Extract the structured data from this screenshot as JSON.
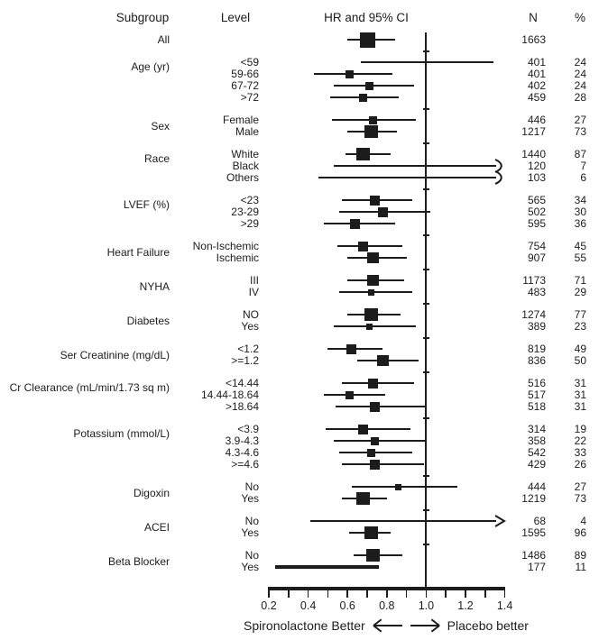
{
  "columns": [
    {
      "label": "Subgroup"
    },
    {
      "label": "Level"
    },
    {
      "label": "HR and 95% CI"
    },
    {
      "label": "N"
    },
    {
      "label": "%"
    }
  ],
  "caption": {
    "left": "Spironolactone Better",
    "right": "Placebo better"
  },
  "colors": {
    "ink": "#1c1c1c",
    "background": "#ffffff"
  },
  "chart_data": {
    "type": "scatter",
    "subtype": "forest-plot",
    "title": "HR and 95% CI",
    "x_axis": {
      "min": 0.2,
      "max": 1.4,
      "minor_step": 0.1,
      "reference_line": 1.0,
      "tick_labels": [
        "0.2",
        "0.4",
        "0.6",
        "0.8",
        "1.0",
        "1.2",
        "1.4"
      ]
    },
    "legend": "marker size proportional to subgroup sample size; arrows indicate CI extends beyond 1.4",
    "groups": [
      {
        "subgroup": "All",
        "levels": [
          {
            "level": "",
            "n": "1663",
            "pct": "",
            "hr": 0.7,
            "lo": 0.6,
            "hi": 0.84,
            "size": "XL"
          }
        ]
      },
      {
        "subgroup": "Age (yr)",
        "levels": [
          {
            "level": "<59",
            "n": "401",
            "pct": "24",
            "hr": null,
            "lo": 0.67,
            "hi": 1.34,
            "size": null
          },
          {
            "level": "59-66",
            "n": "401",
            "pct": "24",
            "hr": 0.61,
            "lo": 0.43,
            "hi": 0.83,
            "size": "S"
          },
          {
            "level": "67-72",
            "n": "402",
            "pct": "24",
            "hr": 0.71,
            "lo": 0.53,
            "hi": 0.94,
            "size": "S"
          },
          {
            "level": ">72",
            "n": "459",
            "pct": "28",
            "hr": 0.68,
            "lo": 0.51,
            "hi": 0.86,
            "size": "S"
          }
        ]
      },
      {
        "subgroup": "Sex",
        "levels": [
          {
            "level": "Female",
            "n": "446",
            "pct": "27",
            "hr": 0.73,
            "lo": 0.52,
            "hi": 0.95,
            "size": "S"
          },
          {
            "level": "Male",
            "n": "1217",
            "pct": "73",
            "hr": 0.72,
            "lo": 0.6,
            "hi": 0.85,
            "size": "L"
          }
        ]
      },
      {
        "subgroup": "Race",
        "levels": [
          {
            "level": "White",
            "n": "1440",
            "pct": "87",
            "hr": 0.68,
            "lo": 0.59,
            "hi": 0.82,
            "size": "L"
          },
          {
            "level": "Black",
            "n": "120",
            "pct": "7",
            "hr": null,
            "lo": 0.53,
            "hi": null,
            "arrow": "curved",
            "size": null
          },
          {
            "level": "Others",
            "n": "103",
            "pct": "6",
            "hr": null,
            "lo": 0.45,
            "hi": null,
            "arrow": "curved",
            "size": null
          }
        ]
      },
      {
        "subgroup": "LVEF (%)",
        "levels": [
          {
            "level": "<23",
            "n": "565",
            "pct": "34",
            "hr": 0.74,
            "lo": 0.57,
            "hi": 0.93,
            "size": "M"
          },
          {
            "level": "23-29",
            "n": "502",
            "pct": "30",
            "hr": 0.78,
            "lo": 0.56,
            "hi": 1.02,
            "size": "M"
          },
          {
            "level": ">29",
            "n": "595",
            "pct": "36",
            "hr": 0.64,
            "lo": 0.48,
            "hi": 0.84,
            "size": "M"
          }
        ]
      },
      {
        "subgroup": "Heart Failure",
        "levels": [
          {
            "level": "Non-Ischemic",
            "n": "754",
            "pct": "45",
            "hr": 0.68,
            "lo": 0.55,
            "hi": 0.88,
            "size": "M"
          },
          {
            "level": "Ischemic",
            "n": "907",
            "pct": "55",
            "hr": 0.73,
            "lo": 0.6,
            "hi": 0.9,
            "size": "ML"
          }
        ]
      },
      {
        "subgroup": "NYHA",
        "levels": [
          {
            "level": "III",
            "n": "1173",
            "pct": "71",
            "hr": 0.73,
            "lo": 0.6,
            "hi": 0.89,
            "size": "ML"
          },
          {
            "level": "IV",
            "n": "483",
            "pct": "29",
            "hr": 0.72,
            "lo": 0.56,
            "hi": 0.93,
            "size": "XS"
          }
        ]
      },
      {
        "subgroup": "Diabetes",
        "levels": [
          {
            "level": "NO",
            "n": "1274",
            "pct": "77",
            "hr": 0.72,
            "lo": 0.6,
            "hi": 0.87,
            "size": "L"
          },
          {
            "level": "Yes",
            "n": "389",
            "pct": "23",
            "hr": 0.71,
            "lo": 0.53,
            "hi": 0.95,
            "size": "XS"
          }
        ]
      },
      {
        "subgroup": "Ser Creatinine (mg/dL)",
        "levels": [
          {
            "level": "<1.2",
            "n": "819",
            "pct": "49",
            "hr": 0.62,
            "lo": 0.5,
            "hi": 0.78,
            "size": "M"
          },
          {
            "level": ">=1.2",
            "n": "836",
            "pct": "50",
            "hr": 0.78,
            "lo": 0.65,
            "hi": 0.96,
            "size": "ML"
          }
        ]
      },
      {
        "subgroup": "Cr Clearance (mL/min/1.73 sq m)",
        "levels": [
          {
            "level": "<14.44",
            "n": "516",
            "pct": "31",
            "hr": 0.73,
            "lo": 0.57,
            "hi": 0.94,
            "size": "M"
          },
          {
            "level": "14.44-18.64",
            "n": "517",
            "pct": "31",
            "hr": 0.61,
            "lo": 0.48,
            "hi": 0.79,
            "size": "S"
          },
          {
            "level": ">18.64",
            "n": "518",
            "pct": "31",
            "hr": 0.74,
            "lo": 0.54,
            "hi": 1.0,
            "size": "M"
          }
        ]
      },
      {
        "subgroup": "Potassium (mmol/L)",
        "levels": [
          {
            "level": "<3.9",
            "n": "314",
            "pct": "19",
            "hr": 0.68,
            "lo": 0.49,
            "hi": 0.92,
            "size": "M"
          },
          {
            "level": "3.9-4.3",
            "n": "358",
            "pct": "22",
            "hr": 0.74,
            "lo": 0.53,
            "hi": 1.0,
            "size": "S"
          },
          {
            "level": "4.3-4.6",
            "n": "542",
            "pct": "33",
            "hr": 0.72,
            "lo": 0.56,
            "hi": 0.93,
            "size": "S"
          },
          {
            "level": ">=4.6",
            "n": "429",
            "pct": "26",
            "hr": 0.74,
            "lo": 0.57,
            "hi": 0.99,
            "size": "M"
          }
        ]
      },
      {
        "subgroup": "Digoxin",
        "levels": [
          {
            "level": "No",
            "n": "444",
            "pct": "27",
            "hr": 0.86,
            "lo": 0.62,
            "hi": 1.16,
            "size": "XS"
          },
          {
            "level": "Yes",
            "n": "1219",
            "pct": "73",
            "hr": 0.68,
            "lo": 0.57,
            "hi": 0.8,
            "size": "L"
          }
        ]
      },
      {
        "subgroup": "ACEI",
        "levels": [
          {
            "level": "No",
            "n": "68",
            "pct": "4",
            "hr": null,
            "lo": 0.41,
            "hi": null,
            "arrow": "straight",
            "size": null
          },
          {
            "level": "Yes",
            "n": "1595",
            "pct": "96",
            "hr": 0.72,
            "lo": 0.61,
            "hi": 0.82,
            "size": "L"
          }
        ]
      },
      {
        "subgroup": "Beta Blocker",
        "levels": [
          {
            "level": "No",
            "n": "1486",
            "pct": "89",
            "hr": 0.73,
            "lo": 0.63,
            "hi": 0.88,
            "size": "L"
          },
          {
            "level": "Yes",
            "n": "177",
            "pct": "11",
            "hr": null,
            "lo": 0.23,
            "hi": 0.76,
            "size": null,
            "thick": true
          }
        ]
      }
    ]
  }
}
